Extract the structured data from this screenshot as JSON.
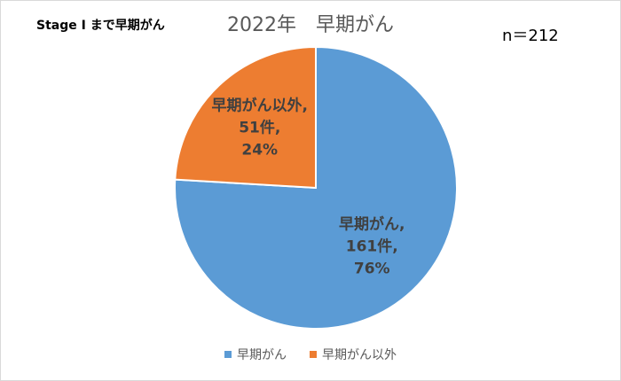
{
  "note": "Stage I まで早期がん",
  "sample_size": "n＝212",
  "chart_data": {
    "type": "pie",
    "title": "2022年　早期がん",
    "slices": [
      {
        "name": "早期がん",
        "count": 161,
        "percent": 76,
        "color": "#5b9bd5",
        "label_lines": [
          "早期がん,",
          "161件,",
          "76%"
        ]
      },
      {
        "name": "早期がん以外",
        "count": 51,
        "percent": 24,
        "color": "#ed7d31",
        "label_lines": [
          "早期がん以外,",
          "51件,",
          "24%"
        ]
      }
    ],
    "start": "12 o'clock",
    "direction": "clockwise",
    "legend_position": "bottom"
  }
}
